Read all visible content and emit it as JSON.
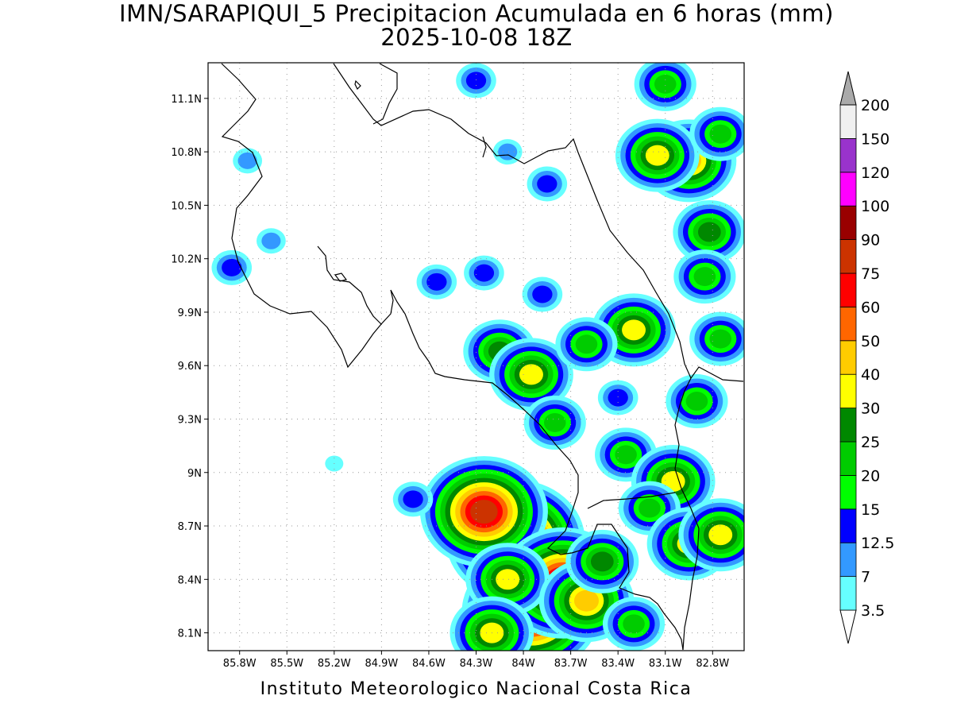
{
  "header": {
    "title_line1": "IMN/SARAPIQUI_5 Precipitacion Acumulada en 6 horas (mm)",
    "title_line2": "2025-10-08 18Z"
  },
  "footer": {
    "credit": "Instituto Meteorologico Nacional Costa Rica"
  },
  "map": {
    "lon_range": [
      -86.0,
      -82.6
    ],
    "lat_range": [
      8.0,
      11.3
    ],
    "lon_ticks": [
      {
        "value": -85.8,
        "label": "85.8W"
      },
      {
        "value": -85.5,
        "label": "85.5W"
      },
      {
        "value": -85.2,
        "label": "85.2W"
      },
      {
        "value": -84.9,
        "label": "84.9W"
      },
      {
        "value": -84.6,
        "label": "84.6W"
      },
      {
        "value": -84.3,
        "label": "84.3W"
      },
      {
        "value": -84.0,
        "label": "84W"
      },
      {
        "value": -83.7,
        "label": "83.7W"
      },
      {
        "value": -83.4,
        "label": "83.4W"
      },
      {
        "value": -83.1,
        "label": "83.1W"
      },
      {
        "value": -82.8,
        "label": "82.8W"
      }
    ],
    "lat_ticks": [
      {
        "value": 8.1,
        "label": "8.1N"
      },
      {
        "value": 8.4,
        "label": "8.4N"
      },
      {
        "value": 8.7,
        "label": "8.7N"
      },
      {
        "value": 9.0,
        "label": "9N"
      },
      {
        "value": 9.3,
        "label": "9.3N"
      },
      {
        "value": 9.6,
        "label": "9.6N"
      },
      {
        "value": 9.9,
        "label": "9.9N"
      },
      {
        "value": 10.2,
        "label": "10.2N"
      },
      {
        "value": 10.5,
        "label": "10.5N"
      },
      {
        "value": 10.8,
        "label": "10.8N"
      },
      {
        "value": 11.1,
        "label": "11.1N"
      }
    ],
    "grid": true,
    "colors": {
      "c3_5": "#66ffff",
      "c7": "#3399ff",
      "c12_5": "#0000ff",
      "c15": "#00ff00",
      "c20": "#00cc00",
      "c25": "#008800",
      "c30": "#ffff00",
      "c40": "#ffcc00",
      "c50": "#ff6600",
      "c60": "#ff0000",
      "c75": "#cc3300",
      "c90": "#990000",
      "c100": "#ff00ff",
      "c120": "#9933cc",
      "c150": "#f0f0f0",
      "c200": "#aaaaaa"
    },
    "colorbar": {
      "levels": [
        {
          "label": "3.5",
          "color": "#66ffff"
        },
        {
          "label": "7",
          "color": "#3399ff"
        },
        {
          "label": "12.5",
          "color": "#0000ff"
        },
        {
          "label": "15",
          "color": "#00ff00"
        },
        {
          "label": "20",
          "color": "#00cc00"
        },
        {
          "label": "25",
          "color": "#008800"
        },
        {
          "label": "30",
          "color": "#ffff00"
        },
        {
          "label": "40",
          "color": "#ffcc00"
        },
        {
          "label": "50",
          "color": "#ff6600"
        },
        {
          "label": "60",
          "color": "#ff0000"
        },
        {
          "label": "75",
          "color": "#cc3300"
        },
        {
          "label": "90",
          "color": "#990000"
        },
        {
          "label": "100",
          "color": "#ff00ff"
        },
        {
          "label": "120",
          "color": "#9933cc"
        },
        {
          "label": "150",
          "color": "#f0f0f0"
        },
        {
          "label": "200",
          "color": "#aaaaaa"
        }
      ]
    },
    "cells": [
      {
        "lon": -84.05,
        "lat": 8.62,
        "value": 95
      },
      {
        "lon": -84.25,
        "lat": 8.78,
        "value": 80
      },
      {
        "lon": -83.95,
        "lat": 8.22,
        "value": 90
      },
      {
        "lon": -83.75,
        "lat": 8.38,
        "value": 75
      },
      {
        "lon": -84.1,
        "lat": 8.4,
        "value": 35
      },
      {
        "lon": -83.6,
        "lat": 8.28,
        "value": 45
      },
      {
        "lon": -83.5,
        "lat": 8.5,
        "value": 25
      },
      {
        "lon": -84.2,
        "lat": 8.1,
        "value": 30
      },
      {
        "lon": -83.3,
        "lat": 8.15,
        "value": 20
      },
      {
        "lon": -82.95,
        "lat": 10.75,
        "value": 45
      },
      {
        "lon": -83.15,
        "lat": 10.78,
        "value": 30
      },
      {
        "lon": -82.82,
        "lat": 10.35,
        "value": 25
      },
      {
        "lon": -82.75,
        "lat": 10.9,
        "value": 20
      },
      {
        "lon": -82.85,
        "lat": 10.1,
        "value": 20
      },
      {
        "lon": -83.1,
        "lat": 11.18,
        "value": 20
      },
      {
        "lon": -84.3,
        "lat": 11.2,
        "value": 12.5
      },
      {
        "lon": -84.1,
        "lat": 10.8,
        "value": 7
      },
      {
        "lon": -83.85,
        "lat": 10.62,
        "value": 12.5
      },
      {
        "lon": -83.88,
        "lat": 10.0,
        "value": 12.5
      },
      {
        "lon": -84.15,
        "lat": 9.68,
        "value": 25
      },
      {
        "lon": -83.95,
        "lat": 9.55,
        "value": 35
      },
      {
        "lon": -83.3,
        "lat": 9.8,
        "value": 30
      },
      {
        "lon": -83.6,
        "lat": 9.72,
        "value": 20
      },
      {
        "lon": -83.35,
        "lat": 9.1,
        "value": 20
      },
      {
        "lon": -83.05,
        "lat": 8.95,
        "value": 30
      },
      {
        "lon": -83.2,
        "lat": 8.8,
        "value": 20
      },
      {
        "lon": -82.95,
        "lat": 8.6,
        "value": 35
      },
      {
        "lon": -82.75,
        "lat": 8.65,
        "value": 30
      },
      {
        "lon": -82.9,
        "lat": 9.4,
        "value": 20
      },
      {
        "lon": -82.75,
        "lat": 9.75,
        "value": 20
      },
      {
        "lon": -85.75,
        "lat": 10.75,
        "value": 7
      },
      {
        "lon": -85.85,
        "lat": 10.15,
        "value": 12.5
      },
      {
        "lon": -85.6,
        "lat": 10.3,
        "value": 7
      },
      {
        "lon": -84.55,
        "lat": 10.07,
        "value": 12.5
      },
      {
        "lon": -84.25,
        "lat": 10.12,
        "value": 12.5
      },
      {
        "lon": -84.7,
        "lat": 8.85,
        "value": 12.5
      },
      {
        "lon": -85.2,
        "lat": 9.05,
        "value": 3.5
      },
      {
        "lon": -83.8,
        "lat": 9.28,
        "value": 20
      },
      {
        "lon": -83.4,
        "lat": 9.42,
        "value": 12.5
      }
    ]
  }
}
